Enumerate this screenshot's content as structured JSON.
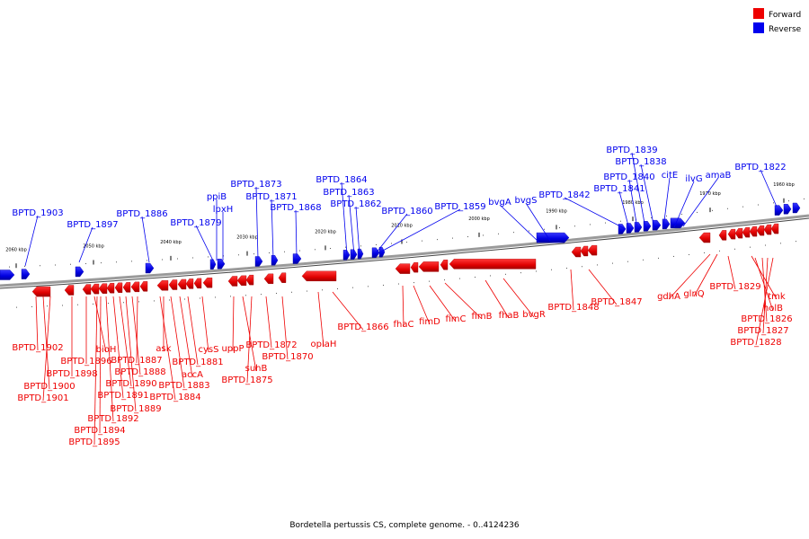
{
  "caption": "Bordetella pertussis CS, complete genome. - 0..4124236",
  "legend": [
    {
      "label": "Forward",
      "color": "#ee0000"
    },
    {
      "label": "Reverse",
      "color": "#0000ee"
    }
  ],
  "colors": {
    "forward": "#ee0000",
    "reverse": "#0000ee",
    "backbone": "#888888"
  },
  "ticks": [
    "2060 kbp",
    "2050 kbp",
    "2040 kbp",
    "2030 kbp",
    "2020 kbp",
    "2010 kbp",
    "2000 kbp",
    "1990 kbp",
    "1980 kbp",
    "1970 kbp",
    "1960 kbp"
  ],
  "labels_reverse": [
    "BPTD_1903",
    "BPTD_1897",
    "BPTD_1886",
    "BPTD_1879",
    "ppiB",
    "lpxH",
    "BPTD_1873",
    "BPTD_1871",
    "BPTD_1868",
    "BPTD_1864",
    "BPTD_1863",
    "BPTD_1862",
    "BPTD_1860",
    "BPTD_1859",
    "bvgA",
    "bvgS",
    "BPTD_1842",
    "BPTD_1841",
    "BPTD_1840",
    "BPTD_1839",
    "BPTD_1838",
    "citE",
    "ilvG",
    "amaB",
    "BPTD_1822"
  ],
  "labels_forward": [
    "BPTD_1902",
    "BPTD_1900",
    "BPTD_1901",
    "BPTD_1898",
    "BPTD_1896",
    "bioH",
    "BPTD_1895",
    "BPTD_1894",
    "BPTD_1892",
    "BPTD_1891",
    "BPTD_1890",
    "BPTD_1889",
    "BPTD_1888",
    "BPTD_1887",
    "BPTD_1884",
    "BPTD_1883",
    "ask",
    "accA",
    "BPTD_1881",
    "cysS",
    "uppP",
    "suhB",
    "BPTD_1875",
    "BPTD_1872",
    "BPTD_1870",
    "oplaH",
    "BPTD_1866",
    "fhaC",
    "fimD",
    "fimC",
    "fimB",
    "fhaB",
    "bvgR",
    "BPTD_1848",
    "BPTD_1847",
    "gdhA",
    "glnQ",
    "BPTD_1829",
    "tmk",
    "holB",
    "BPTD_1826",
    "BPTD_1827",
    "BPTD_1828"
  ]
}
